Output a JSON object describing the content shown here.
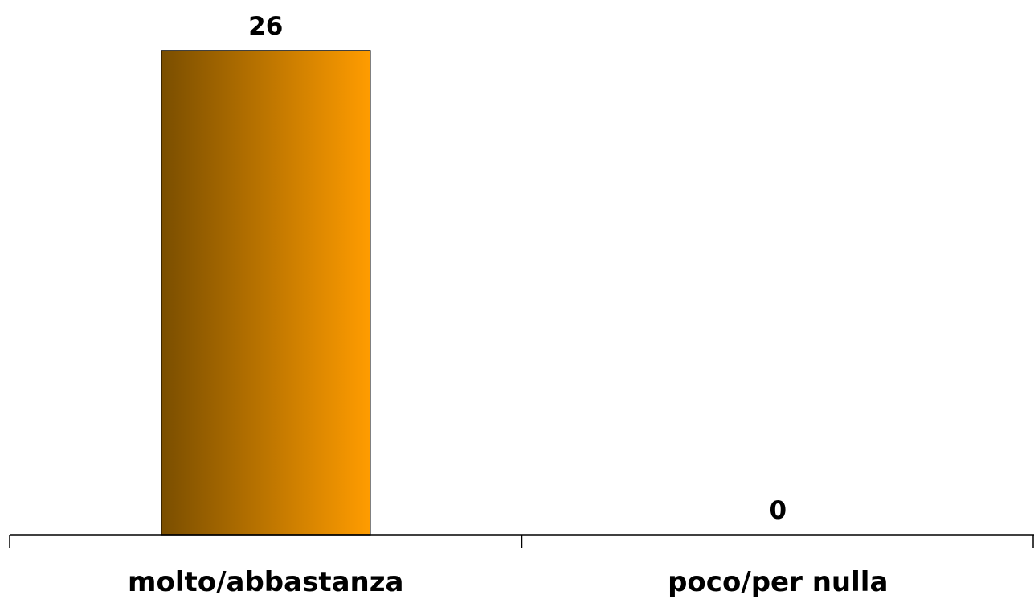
{
  "chart_data": {
    "type": "bar",
    "categories": [
      "molto/abbastanza",
      "poco/per nulla"
    ],
    "values": [
      26,
      0
    ],
    "data_labels": [
      "26",
      "0"
    ],
    "title": "",
    "xlabel": "",
    "ylabel": "",
    "ylim": [
      0,
      26
    ],
    "grid": false,
    "legend": "none",
    "bar_fill": {
      "gradient_start": "#7a4e00",
      "gradient_end": "#ff9c00",
      "stroke": "#000000"
    },
    "axis_color": "#000000"
  }
}
